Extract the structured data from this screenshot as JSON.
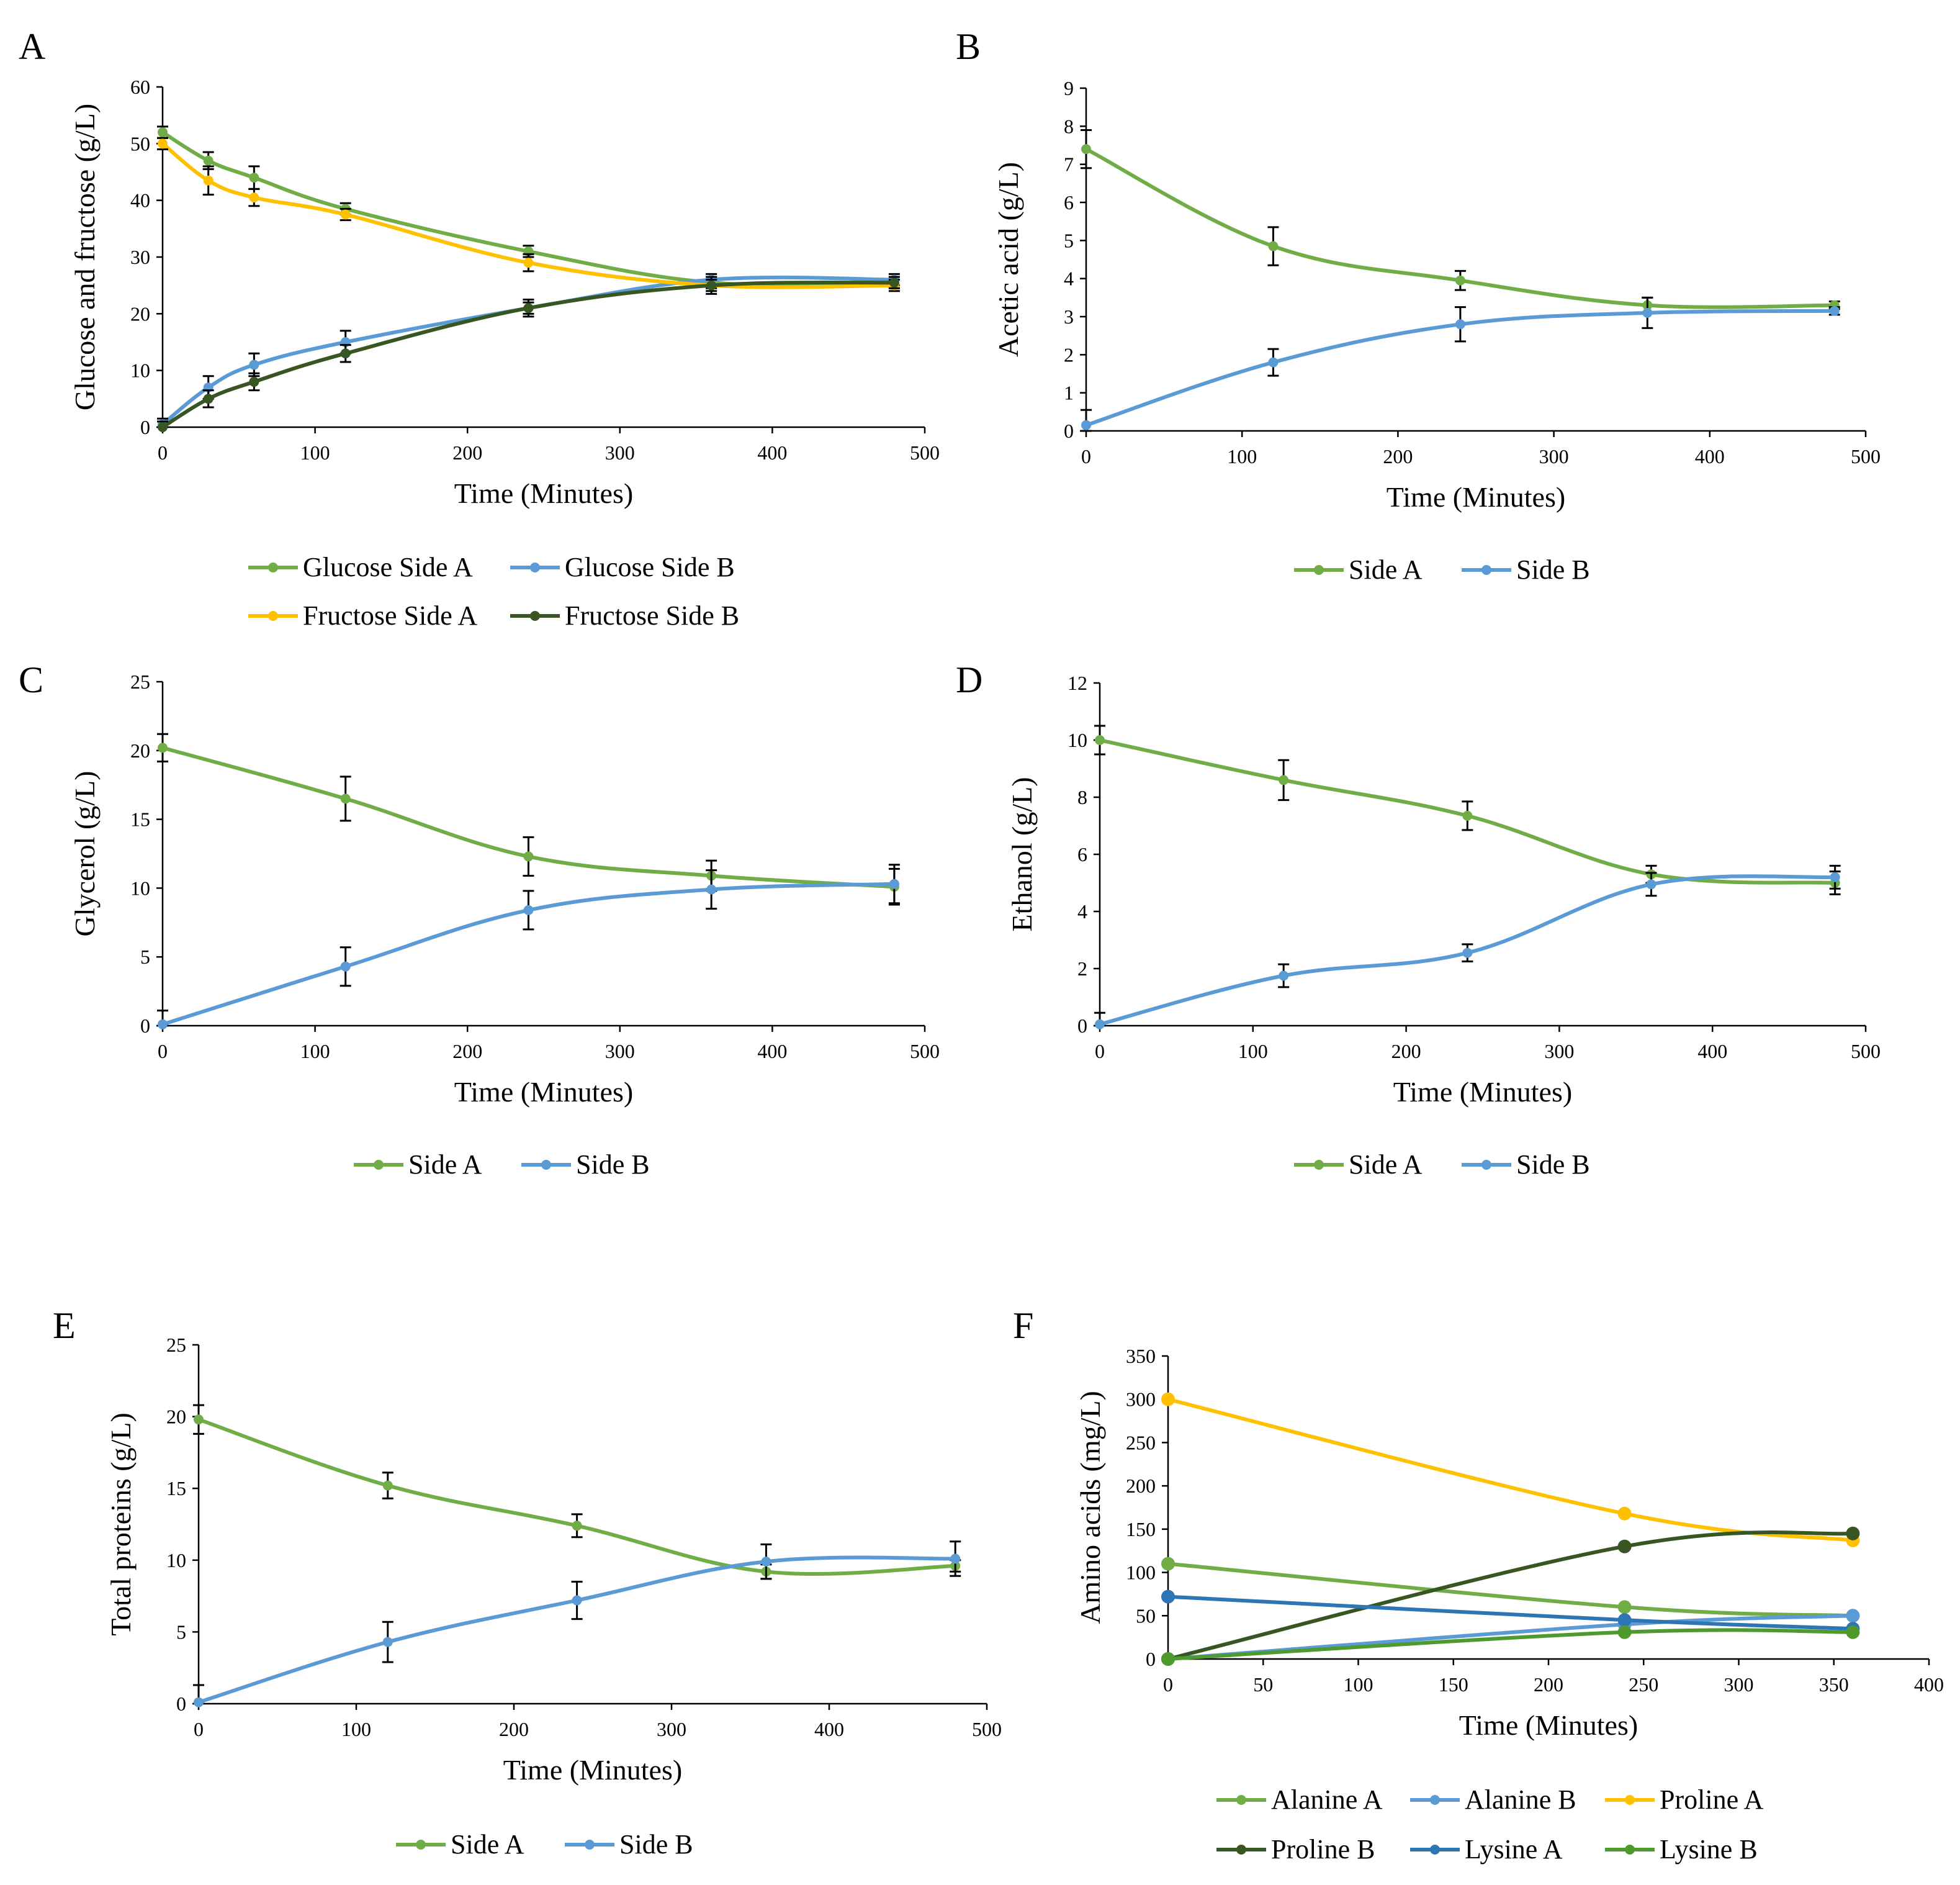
{
  "colors": {
    "green": "#70AD47",
    "blue": "#5B9BD5",
    "orange": "#FFC000",
    "dark_green": "#375623",
    "steel_blue": "#2E75B6",
    "mid_green": "#4E9A2F"
  },
  "chart_data": [
    {
      "id": "A",
      "panel_label": "A",
      "type": "line",
      "xlabel": "Time (Minutes)",
      "ylabel": "Glucose and fructose (g/L)",
      "xlim": [
        0,
        500
      ],
      "xticks": [
        0,
        100,
        200,
        300,
        400,
        500
      ],
      "ylim": [
        0,
        60
      ],
      "yticks": [
        0,
        10,
        20,
        30,
        40,
        50,
        60
      ],
      "series": [
        {
          "name": "Glucose Side A",
          "color": "green",
          "x": [
            0,
            30,
            60,
            120,
            240,
            360,
            480
          ],
          "y": [
            52,
            47,
            44,
            38.5,
            31,
            25.5,
            25.5
          ],
          "err": [
            1,
            1.5,
            2,
            1,
            1,
            1,
            1
          ]
        },
        {
          "name": "Glucose Side B",
          "color": "blue",
          "x": [
            0,
            30,
            60,
            120,
            240,
            360,
            480
          ],
          "y": [
            0.5,
            7,
            11,
            15,
            21,
            26,
            26
          ],
          "err": [
            1,
            2,
            2,
            2,
            1,
            1,
            1
          ]
        },
        {
          "name": "Fructose Side A",
          "color": "orange",
          "x": [
            0,
            30,
            60,
            120,
            240,
            360,
            480
          ],
          "y": [
            50,
            43.5,
            40.5,
            37.5,
            29,
            25,
            25
          ],
          "err": [
            1,
            2.5,
            1.5,
            1,
            1.5,
            1,
            1
          ]
        },
        {
          "name": "Fructose Side B",
          "color": "dark_green",
          "x": [
            0,
            30,
            60,
            120,
            240,
            360,
            480
          ],
          "y": [
            0,
            5,
            8,
            13,
            21,
            25,
            25.5
          ],
          "err": [
            1,
            1.5,
            1.5,
            1.5,
            1.5,
            1.5,
            1
          ]
        }
      ],
      "legend_rows": [
        [
          "Glucose Side A",
          "Glucose Side B"
        ],
        [
          "Fructose Side A",
          "Fructose Side B"
        ]
      ]
    },
    {
      "id": "B",
      "panel_label": "B",
      "type": "line",
      "xlabel": "Time (Minutes)",
      "ylabel": "Acetic acid (g/L)",
      "xlim": [
        0,
        500
      ],
      "xticks": [
        0,
        100,
        200,
        300,
        400,
        500
      ],
      "ylim": [
        0,
        9
      ],
      "yticks": [
        0,
        1,
        2,
        3,
        4,
        5,
        6,
        7,
        8,
        9
      ],
      "series": [
        {
          "name": "Side A",
          "color": "green",
          "x": [
            0,
            120,
            240,
            360,
            480
          ],
          "y": [
            7.4,
            4.85,
            3.95,
            3.3,
            3.3
          ],
          "err": [
            0.5,
            0.5,
            0.25,
            0.2,
            0.1
          ]
        },
        {
          "name": "Side B",
          "color": "blue",
          "x": [
            0,
            120,
            240,
            360,
            480
          ],
          "y": [
            0.15,
            1.8,
            2.8,
            3.1,
            3.15
          ],
          "err": [
            0.4,
            0.35,
            0.45,
            0.4,
            0.1
          ]
        }
      ],
      "legend_rows": [
        [
          "Side A",
          "Side B"
        ]
      ]
    },
    {
      "id": "C",
      "panel_label": "C",
      "type": "line",
      "xlabel": "Time (Minutes)",
      "ylabel": "Glycerol (g/L)",
      "xlim": [
        0,
        500
      ],
      "xticks": [
        0,
        100,
        200,
        300,
        400,
        500
      ],
      "ylim": [
        0,
        25
      ],
      "yticks": [
        0,
        5,
        10,
        15,
        20,
        25
      ],
      "series": [
        {
          "name": "Side A",
          "color": "green",
          "x": [
            0,
            120,
            240,
            360,
            480
          ],
          "y": [
            20.2,
            16.5,
            12.3,
            10.9,
            10.1
          ],
          "err": [
            1,
            1.6,
            1.4,
            1.1,
            1.3
          ]
        },
        {
          "name": "Side B",
          "color": "blue",
          "x": [
            0,
            120,
            240,
            360,
            480
          ],
          "y": [
            0.1,
            4.3,
            8.4,
            9.9,
            10.3
          ],
          "err": [
            1,
            1.4,
            1.4,
            1.4,
            1.4
          ]
        }
      ],
      "legend_rows": [
        [
          "Side A",
          "Side B"
        ]
      ]
    },
    {
      "id": "D",
      "panel_label": "D",
      "type": "line",
      "xlabel": "Time (Minutes)",
      "ylabel": "Ethanol (g/L)",
      "xlim": [
        0,
        500
      ],
      "xticks": [
        0,
        100,
        200,
        300,
        400,
        500
      ],
      "ylim": [
        0,
        12
      ],
      "yticks": [
        0,
        2,
        4,
        6,
        8,
        10,
        12
      ],
      "series": [
        {
          "name": "Side A",
          "color": "green",
          "x": [
            0,
            120,
            240,
            360,
            480
          ],
          "y": [
            10,
            8.6,
            7.35,
            5.3,
            5.0
          ],
          "err": [
            0.5,
            0.7,
            0.5,
            0.3,
            0.4
          ]
        },
        {
          "name": "Side B",
          "color": "blue",
          "x": [
            0,
            120,
            240,
            360,
            480
          ],
          "y": [
            0.05,
            1.75,
            2.55,
            4.95,
            5.2
          ],
          "err": [
            0.4,
            0.4,
            0.3,
            0.4,
            0.4
          ]
        }
      ],
      "legend_rows": [
        [
          "Side A",
          "Side B"
        ]
      ]
    },
    {
      "id": "E",
      "panel_label": "E",
      "type": "line",
      "xlabel": "Time (Minutes)",
      "ylabel": "Total proteins (g/L)",
      "xlim": [
        0,
        500
      ],
      "xticks": [
        0,
        100,
        200,
        300,
        400,
        500
      ],
      "ylim": [
        0,
        25
      ],
      "yticks": [
        0,
        5,
        10,
        15,
        20,
        25
      ],
      "series": [
        {
          "name": "Side A",
          "color": "green",
          "x": [
            0,
            120,
            240,
            360,
            480
          ],
          "y": [
            19.8,
            15.2,
            12.4,
            9.2,
            9.6
          ],
          "err": [
            1,
            0.9,
            0.8,
            0.5,
            0.4
          ]
        },
        {
          "name": "Side B",
          "color": "blue",
          "x": [
            0,
            120,
            240,
            360,
            480
          ],
          "y": [
            0.1,
            4.3,
            7.2,
            9.9,
            10.1
          ],
          "err": [
            1.2,
            1.4,
            1.3,
            1.2,
            1.2
          ]
        }
      ],
      "legend_rows": [
        [
          "Side A",
          "Side B"
        ]
      ]
    },
    {
      "id": "F",
      "panel_label": "F",
      "type": "line",
      "xlabel": "Time (Minutes)",
      "ylabel": "Amino acids (mg/L)",
      "xlim": [
        0,
        400
      ],
      "xticks": [
        0,
        50,
        100,
        150,
        200,
        250,
        300,
        350,
        400
      ],
      "ylim": [
        0,
        350
      ],
      "yticks": [
        0,
        50,
        100,
        150,
        200,
        250,
        300,
        350
      ],
      "series": [
        {
          "name": "Alanine A",
          "color": "green",
          "x": [
            0,
            240,
            360
          ],
          "y": [
            110,
            60,
            50
          ],
          "err": null
        },
        {
          "name": "Alanine B",
          "color": "blue",
          "x": [
            0,
            240,
            360
          ],
          "y": [
            0,
            40,
            50
          ],
          "err": null
        },
        {
          "name": "Proline A",
          "color": "orange",
          "x": [
            0,
            240,
            360
          ],
          "y": [
            300,
            168,
            137
          ],
          "err": null
        },
        {
          "name": "Proline B",
          "color": "dark_green",
          "x": [
            0,
            240,
            360
          ],
          "y": [
            0,
            130,
            145
          ],
          "err": null
        },
        {
          "name": "Lysine A",
          "color": "steel_blue",
          "x": [
            0,
            240,
            360
          ],
          "y": [
            72,
            45,
            35
          ],
          "err": null
        },
        {
          "name": "Lysine B",
          "color": "mid_green",
          "x": [
            0,
            240,
            360
          ],
          "y": [
            0,
            31,
            31
          ],
          "err": null
        }
      ],
      "legend_rows": [
        [
          "Alanine A",
          "Alanine B",
          "Proline A"
        ],
        [
          "Proline B",
          "Lysine A",
          "Lysine B"
        ]
      ]
    }
  ]
}
